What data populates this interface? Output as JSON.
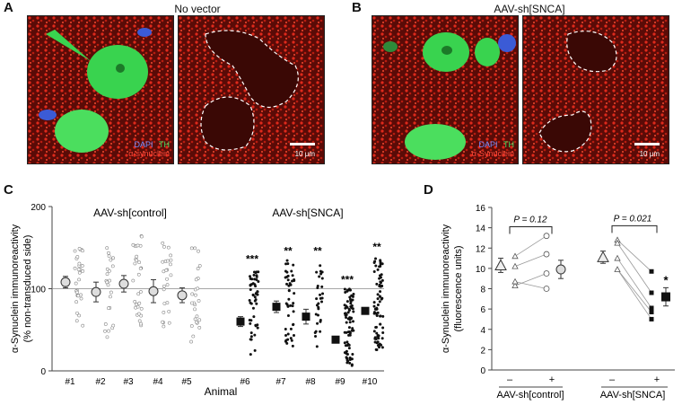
{
  "panels": {
    "a": {
      "letter": "A",
      "title": "No vector"
    },
    "b": {
      "letter": "B",
      "title": "AAV-sh[SNCA]"
    },
    "c": {
      "letter": "C"
    },
    "d": {
      "letter": "D"
    }
  },
  "micro_legend": {
    "dapi": "DAPI",
    "th": "TH",
    "syn": "α-synuclein",
    "syn_b": "α-Synuclein",
    "scale": "10 μm"
  },
  "colors": {
    "dapi": "#3b5bd6",
    "th": "#22c55e",
    "syn": "#e0291b"
  },
  "chart_data": [
    {
      "type": "scatter",
      "ylabel": "α-Synuclein immunoreactivity\n(% non-transduced side)",
      "xlabel": "Animal",
      "ylim": [
        0,
        200
      ],
      "yticks": [
        0,
        100,
        200
      ],
      "reference_line": 100,
      "categories": [
        "#1",
        "#2",
        "#3",
        "#4",
        "#5",
        "#6",
        "#7",
        "#8",
        "#9",
        "#10"
      ],
      "groups": [
        {
          "label": "AAV-sh[control]",
          "animals": [
            "#1",
            "#2",
            "#3",
            "#4",
            "#5"
          ],
          "marker": "open-circle"
        },
        {
          "label": "AAV-sh[SNCA]",
          "animals": [
            "#6",
            "#7",
            "#8",
            "#9",
            "#10"
          ],
          "marker": "filled-square"
        }
      ],
      "means": [
        108,
        96,
        106,
        97,
        92,
        60,
        78,
        66,
        38,
        73
      ],
      "errors": [
        7,
        12,
        10,
        14,
        9,
        6,
        7,
        9,
        4,
        4
      ],
      "significance": [
        "",
        "",
        "",
        "",
        "",
        "***",
        "**",
        "**",
        "***",
        "**"
      ],
      "point_counts": [
        30,
        25,
        30,
        25,
        25,
        50,
        45,
        30,
        80,
        80
      ],
      "point_ranges": [
        [
          55,
          155
        ],
        [
          40,
          150
        ],
        [
          55,
          165
        ],
        [
          50,
          160
        ],
        [
          35,
          150
        ],
        [
          20,
          125
        ],
        [
          30,
          135
        ],
        [
          25,
          135
        ],
        [
          5,
          100
        ],
        [
          25,
          140
        ]
      ]
    },
    {
      "type": "scatter",
      "ylabel": "α-Synuclein immunoreactivity\n(fluorescence units)",
      "ylim": [
        0,
        16
      ],
      "yticks": [
        0,
        2,
        4,
        6,
        8,
        10,
        12,
        14,
        16
      ],
      "groups": [
        {
          "label": "AAV-sh[control]",
          "p_value": "P = 0.12",
          "tick_labels": [
            "–",
            "+"
          ],
          "minus": {
            "mean": 10.3,
            "error": 0.7,
            "points": [
              11.2,
              10.2,
              8.3,
              8.7
            ]
          },
          "plus": {
            "mean": 9.9,
            "error": 0.9,
            "points": [
              13.2,
              11.4,
              9.5,
              8.0
            ]
          },
          "sig": ""
        },
        {
          "label": "AAV-sh[SNCA]",
          "p_value": "P = 0.021",
          "tick_labels": [
            "–",
            "+"
          ],
          "minus": {
            "mean": 11.1,
            "error": 0.6,
            "points": [
              12.8,
              12.5,
              11.0,
              9.9
            ]
          },
          "plus": {
            "mean": 7.2,
            "error": 0.9,
            "points": [
              9.7,
              7.6,
              6.1,
              5.0,
              5.7
            ]
          },
          "sig": "*"
        }
      ]
    }
  ]
}
